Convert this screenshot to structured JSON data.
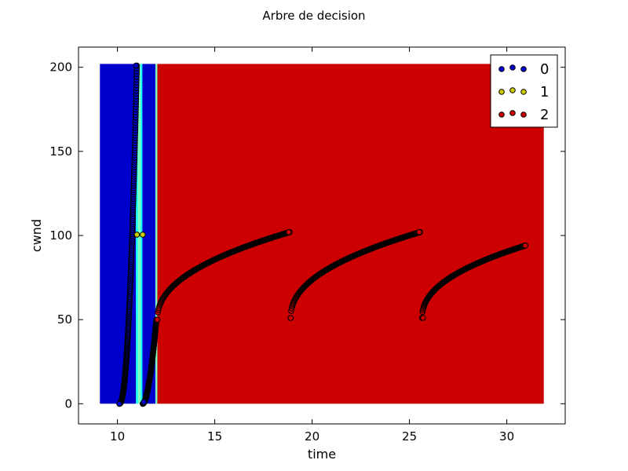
{
  "chart_data": {
    "type": "scatter",
    "title": "Arbre de decision",
    "xlabel": "time",
    "ylabel": "cwnd",
    "xlim": [
      8,
      33
    ],
    "ylim": [
      -12,
      212
    ],
    "xticks": [
      10,
      15,
      20,
      25,
      30
    ],
    "yticks": [
      0,
      50,
      100,
      150,
      200
    ],
    "grid": false,
    "legend_position": "top-right",
    "regions": [
      {
        "class": "0",
        "x0": 9.1,
        "x1": 10.95,
        "color": "#0000cc"
      },
      {
        "class": "1",
        "x0": 10.95,
        "x1": 11.05,
        "color": "#00ffff"
      },
      {
        "class": "1",
        "x0": 11.05,
        "x1": 11.2,
        "color": "#80ffc0"
      },
      {
        "class": "1",
        "x0": 11.2,
        "x1": 11.28,
        "color": "#00ffff"
      },
      {
        "class": "0",
        "x0": 11.28,
        "x1": 11.95,
        "color": "#0000cc"
      },
      {
        "class": "0",
        "x0": 11.95,
        "x1": 12.05,
        "color": "#80ffc0"
      },
      {
        "class": "2",
        "x0": 12.05,
        "x1": 31.9,
        "color": "#cc0000"
      }
    ],
    "region_y": [
      0,
      202
    ],
    "series": [
      {
        "name": "0",
        "color": "#0000cc",
        "segments": [
          {
            "x0": 10.1,
            "y0": 0,
            "x1": 11.0,
            "y1": 201,
            "exp": 2.2
          },
          {
            "x0": 11.3,
            "y0": 0,
            "x1": 12.0,
            "y1": 50,
            "exp": 1.8
          }
        ],
        "points": [
          [
            10.1,
            0
          ],
          [
            10.95,
            201
          ],
          [
            11.35,
            1
          ]
        ]
      },
      {
        "name": "1",
        "color": "#cccc00",
        "segments": [],
        "points": [
          [
            11.0,
            100.5
          ],
          [
            11.3,
            100.5
          ]
        ]
      },
      {
        "name": "2",
        "color": "#cc0000",
        "segments": [
          {
            "x0": 12.05,
            "y0": 50,
            "x1": 18.85,
            "y1": 102,
            "exp": 0.45
          },
          {
            "x0": 18.9,
            "y0": 51,
            "x1": 25.55,
            "y1": 102,
            "exp": 0.45
          },
          {
            "x0": 25.65,
            "y0": 51,
            "x1": 30.95,
            "y1": 94,
            "exp": 0.45
          }
        ],
        "points": [
          [
            12.05,
            50
          ],
          [
            18.8,
            102
          ],
          [
            18.9,
            51
          ],
          [
            25.5,
            102
          ],
          [
            25.7,
            51
          ],
          [
            30.95,
            94
          ]
        ]
      }
    ],
    "legend": [
      {
        "label": "0",
        "color": "#0000cc"
      },
      {
        "label": "1",
        "color": "#cccc00"
      },
      {
        "label": "2",
        "color": "#cc0000"
      }
    ]
  }
}
